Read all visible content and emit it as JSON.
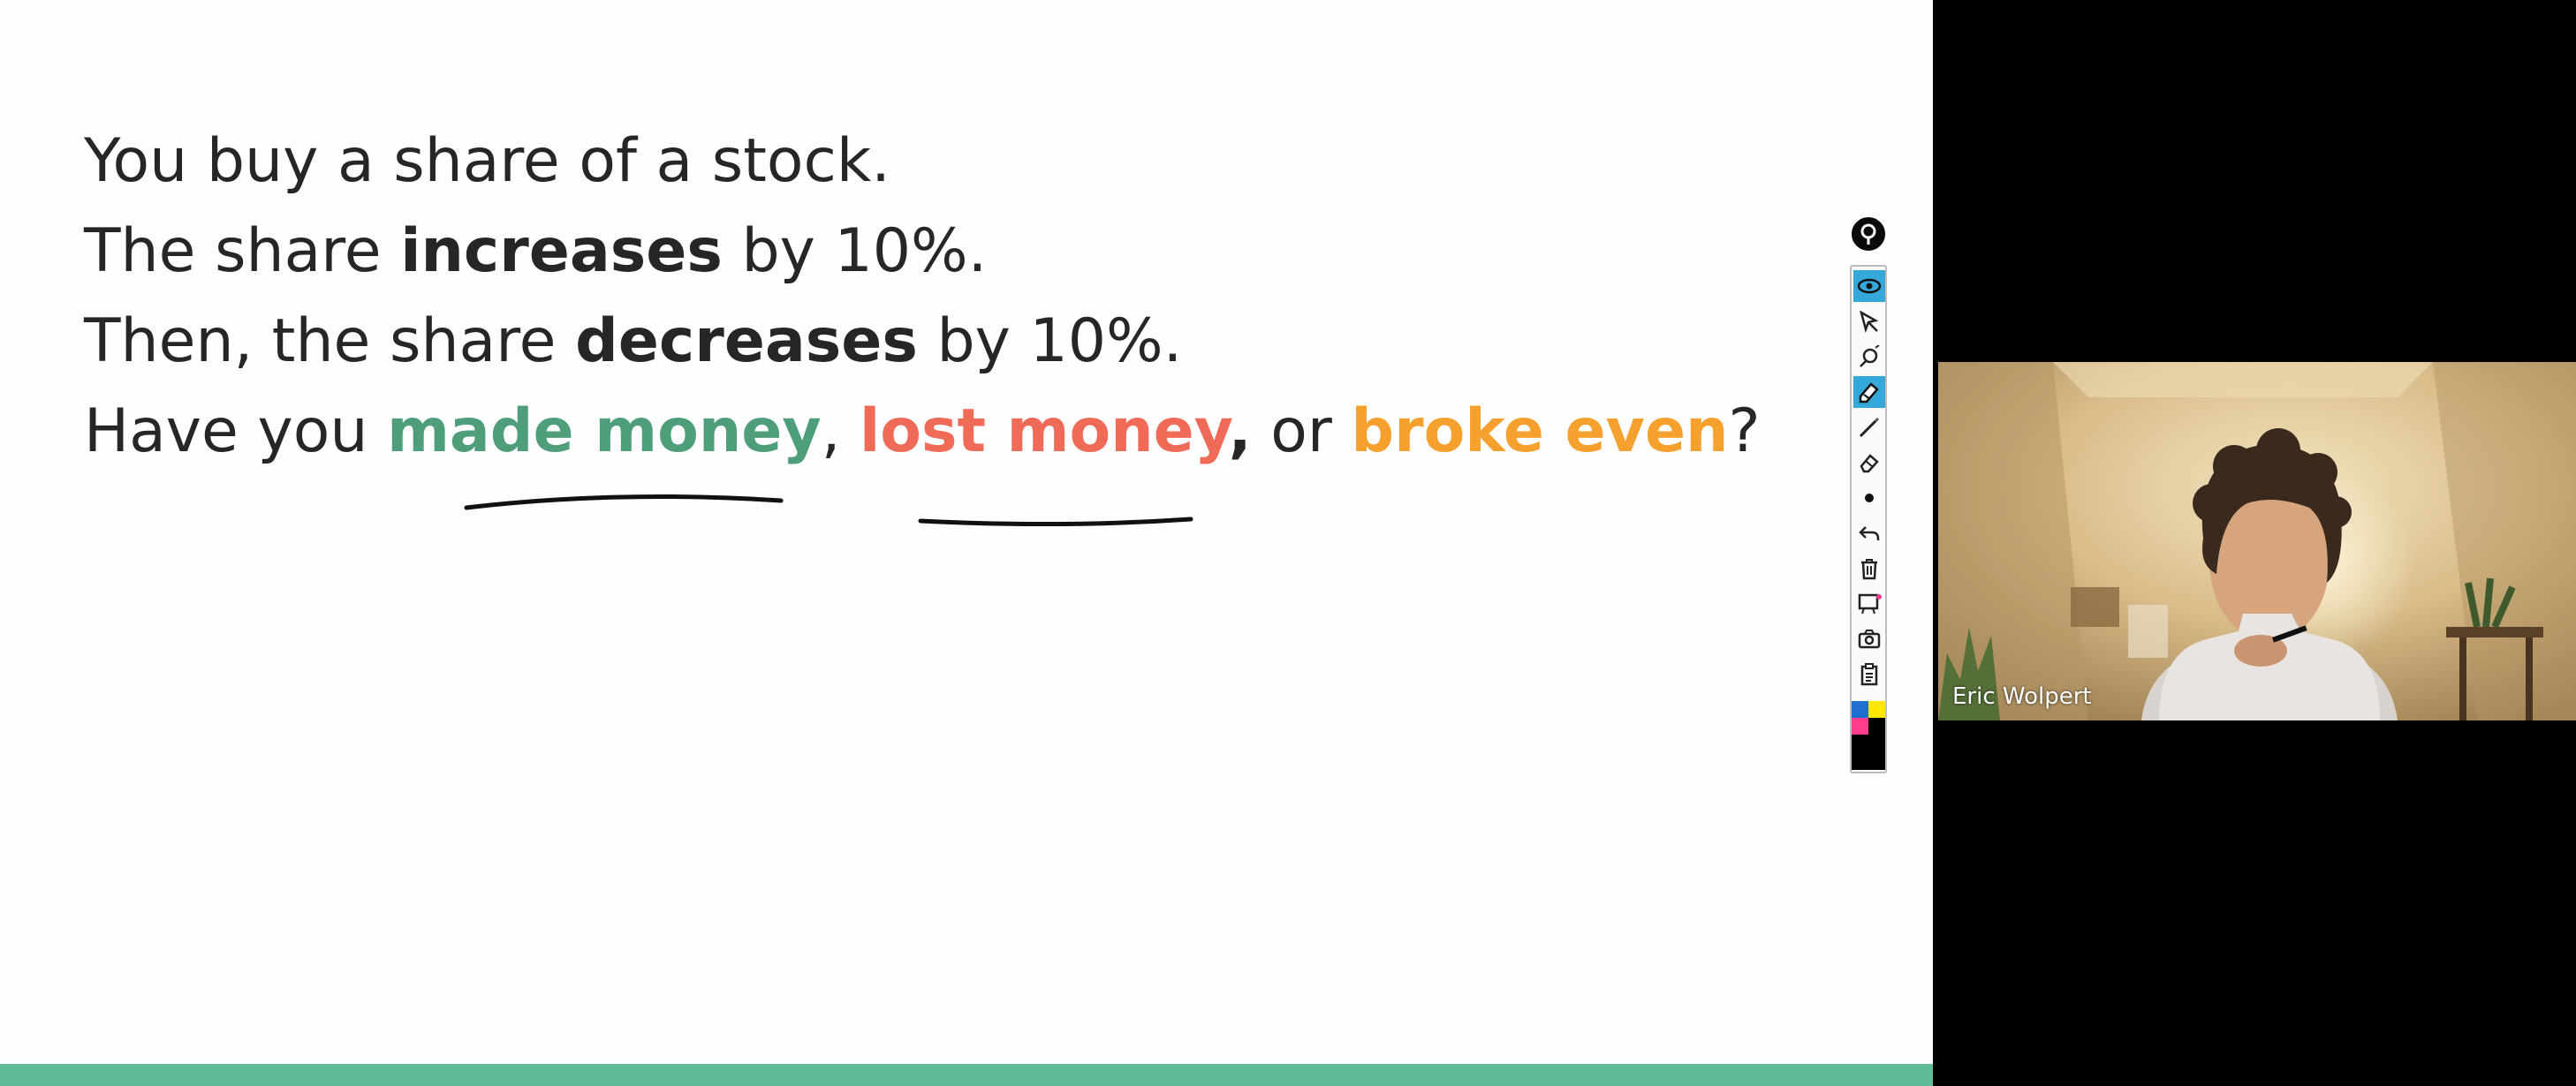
{
  "slide": {
    "line1": "You buy a share of a stock.",
    "line2_pre": "The share ",
    "line2_bold": "increases",
    "line2_post": " by 10%.",
    "line3_pre": "Then, the share ",
    "line3_bold": "decreases",
    "line3_post": " by 10%.",
    "line4_pre": "Have you ",
    "option_made": "made money",
    "sep1": ", ",
    "option_lost": "lost money",
    "sep2": ",",
    "sep3": " or ",
    "option_even": "broke even",
    "line4_end": "?"
  },
  "colors": {
    "made_money": "#4e9e7c",
    "lost_money": "#f06a58",
    "broke_even": "#f6a02d",
    "bottom_bar": "#5fbc97",
    "toolbar_active": "#35a8d9"
  },
  "toolbar": {
    "tools": [
      "eye-icon",
      "pointer-icon",
      "laser-pointer-icon",
      "highlighter-icon",
      "pen-icon",
      "eraser-icon",
      "dot-icon",
      "undo-icon",
      "trash-icon",
      "whiteboard-icon",
      "camera-icon",
      "clipboard-icon"
    ],
    "palette": [
      "#1f6fd1",
      "#ffe600",
      "#ff3c8e",
      "#000000"
    ]
  },
  "webcam": {
    "participant_name": "Eric Wolpert"
  }
}
